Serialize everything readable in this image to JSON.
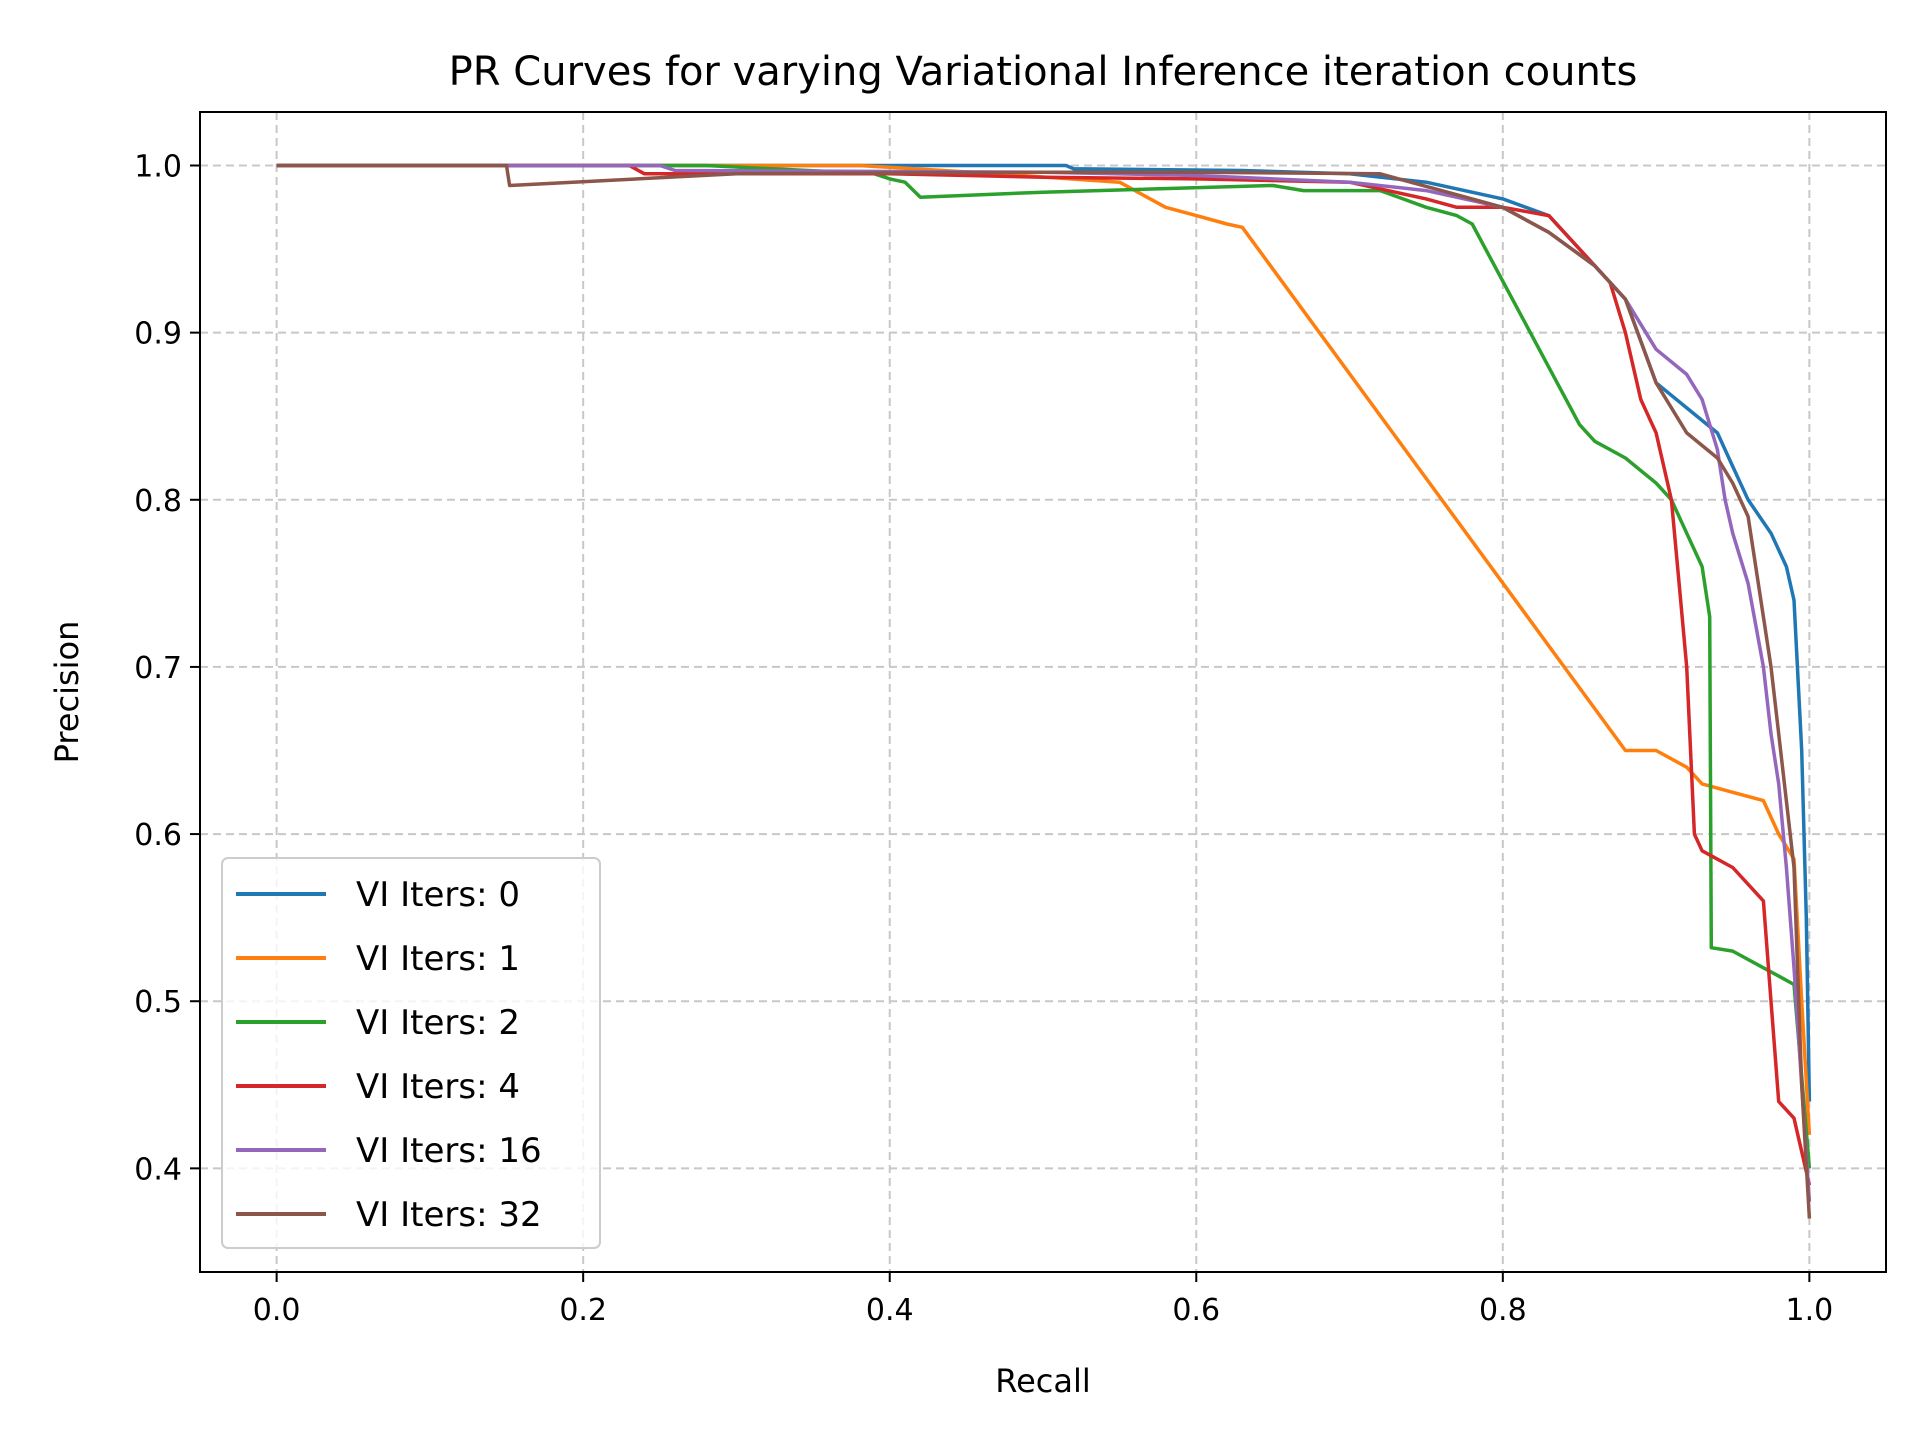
{
  "chart_data": {
    "type": "line",
    "title": "PR Curves for varying Variational Inference iteration counts",
    "xlabel": "Recall",
    "ylabel": "Precision",
    "xlim": [
      -0.05,
      1.05
    ],
    "ylim": [
      0.338,
      1.032
    ],
    "xticks": [
      0.0,
      0.2,
      0.4,
      0.6,
      0.8,
      1.0
    ],
    "xtick_labels": [
      "0.0",
      "0.2",
      "0.4",
      "0.6",
      "0.8",
      "1.0"
    ],
    "yticks": [
      0.4,
      0.5,
      0.6,
      0.7,
      0.8,
      0.9,
      1.0
    ],
    "ytick_labels": [
      "0.4",
      "0.5",
      "0.6",
      "0.7",
      "0.8",
      "0.9",
      "1.0"
    ],
    "grid": true,
    "legend_position": "lower-left",
    "series": [
      {
        "name": "VI Iters: 0",
        "color": "#1f77b4",
        "x": [
          0.0,
          0.3,
          0.515,
          0.52,
          0.63,
          0.7,
          0.75,
          0.8,
          0.83,
          0.85,
          0.88,
          0.9,
          0.92,
          0.94,
          0.95,
          0.96,
          0.975,
          0.985,
          0.99,
          0.995,
          0.998,
          1.0
        ],
        "y": [
          1.0,
          1.0,
          1.0,
          0.998,
          0.997,
          0.995,
          0.99,
          0.98,
          0.97,
          0.95,
          0.92,
          0.87,
          0.855,
          0.84,
          0.82,
          0.8,
          0.78,
          0.76,
          0.74,
          0.65,
          0.55,
          0.44
        ]
      },
      {
        "name": "VI Iters: 1",
        "color": "#ff7f0e",
        "x": [
          0.0,
          0.29,
          0.38,
          0.47,
          0.55,
          0.58,
          0.6,
          0.62,
          0.63,
          0.88,
          0.9,
          0.92,
          0.93,
          0.95,
          0.97,
          0.98,
          0.99,
          0.995,
          1.0
        ],
        "y": [
          1.0,
          1.0,
          1.0,
          0.995,
          0.99,
          0.975,
          0.97,
          0.965,
          0.963,
          0.65,
          0.65,
          0.64,
          0.63,
          0.625,
          0.62,
          0.6,
          0.585,
          0.5,
          0.42
        ]
      },
      {
        "name": "VI Iters: 2",
        "color": "#2ca02c",
        "x": [
          0.0,
          0.28,
          0.39,
          0.4,
          0.41,
          0.42,
          0.5,
          0.65,
          0.67,
          0.72,
          0.75,
          0.77,
          0.78,
          0.85,
          0.86,
          0.88,
          0.9,
          0.91,
          0.92,
          0.93,
          0.935,
          0.936,
          0.95,
          0.97,
          0.98,
          0.99,
          1.0
        ],
        "y": [
          1.0,
          1.0,
          0.995,
          0.992,
          0.99,
          0.981,
          0.984,
          0.988,
          0.985,
          0.985,
          0.975,
          0.97,
          0.965,
          0.845,
          0.835,
          0.825,
          0.81,
          0.8,
          0.78,
          0.76,
          0.73,
          0.532,
          0.53,
          0.52,
          0.515,
          0.51,
          0.4
        ]
      },
      {
        "name": "VI Iters: 4",
        "color": "#d62728",
        "x": [
          0.0,
          0.23,
          0.24,
          0.4,
          0.5,
          0.6,
          0.7,
          0.75,
          0.77,
          0.8,
          0.83,
          0.85,
          0.87,
          0.88,
          0.885,
          0.89,
          0.9,
          0.91,
          0.915,
          0.92,
          0.925,
          0.93,
          0.95,
          0.97,
          0.975,
          0.98,
          0.99,
          1.0
        ],
        "y": [
          1.0,
          1.0,
          0.995,
          0.995,
          0.993,
          0.992,
          0.99,
          0.98,
          0.975,
          0.975,
          0.97,
          0.95,
          0.93,
          0.9,
          0.88,
          0.86,
          0.84,
          0.8,
          0.75,
          0.7,
          0.6,
          0.59,
          0.58,
          0.56,
          0.5,
          0.44,
          0.43,
          0.39
        ]
      },
      {
        "name": "VI Iters: 16",
        "color": "#9467bd",
        "x": [
          0.0,
          0.25,
          0.26,
          0.5,
          0.6,
          0.7,
          0.75,
          0.8,
          0.83,
          0.86,
          0.88,
          0.9,
          0.92,
          0.93,
          0.94,
          0.945,
          0.95,
          0.96,
          0.97,
          0.975,
          0.98,
          0.985,
          0.99,
          0.995,
          1.0
        ],
        "y": [
          1.0,
          1.0,
          0.997,
          0.996,
          0.994,
          0.99,
          0.985,
          0.975,
          0.96,
          0.94,
          0.92,
          0.89,
          0.875,
          0.86,
          0.83,
          0.8,
          0.78,
          0.75,
          0.7,
          0.66,
          0.63,
          0.58,
          0.52,
          0.45,
          0.38
        ]
      },
      {
        "name": "VI Iters: 32",
        "color": "#8c564b",
        "x": [
          0.0,
          0.15,
          0.152,
          0.3,
          0.5,
          0.6,
          0.72,
          0.76,
          0.8,
          0.83,
          0.86,
          0.88,
          0.9,
          0.92,
          0.94,
          0.95,
          0.96,
          0.97,
          0.975,
          0.98,
          0.99,
          0.995,
          1.0
        ],
        "y": [
          1.0,
          1.0,
          0.988,
          0.995,
          0.996,
          0.996,
          0.995,
          0.985,
          0.975,
          0.96,
          0.94,
          0.92,
          0.87,
          0.84,
          0.825,
          0.81,
          0.79,
          0.73,
          0.7,
          0.66,
          0.58,
          0.45,
          0.37
        ]
      }
    ]
  }
}
